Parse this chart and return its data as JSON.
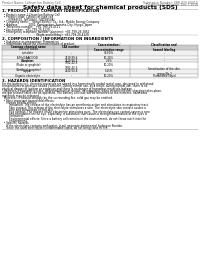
{
  "bg_color": "#ffffff",
  "top_left_text": "Product Name: Lithium Ion Battery Cell",
  "top_right_line1": "Substance Number: SBR-049-00010",
  "top_right_line2": "Established / Revision: Dec.7.2016",
  "main_title": "Safety data sheet for chemical products (SDS)",
  "section1_title": "1. PRODUCT AND COMPANY IDENTIFICATION",
  "section1_lines": [
    "  • Product name: Lithium Ion Battery Cell",
    "  • Product code: Cylindrical-type cell",
    "       (IVR66500, IVR18650, IVR18650A)",
    "  • Company name:    Sanyo Electric Co., Ltd., Mobile Energy Company",
    "  • Address:            2001, Kamiyashiro, Sumoto-City, Hyogo, Japan",
    "  • Telephone number:   +81-799-26-4111",
    "  • Fax number:  +81-799-26-4129",
    "  • Emergency telephone number (daytime): +81-799-26-3062",
    "                                       (Night and holiday): +81-799-26-4129"
  ],
  "section2_title": "2. COMPOSITION / INFORMATION ON INGREDIENTS",
  "section2_sub": "  • Substance or preparation: Preparation",
  "section2_sub2": "  • Information about the chemical nature of product:",
  "table_col_headers": [
    "Common chemical name",
    "CAS number",
    "Concentration /\nConcentration range",
    "Classification and\nhazard labeling"
  ],
  "table_rows": [
    [
      "Lithium cobalt\ntantalate\n(LiMnO4·PCl3O4)",
      "-",
      "30-60%",
      "-"
    ],
    [
      "Iron",
      "7439-89-6",
      "10-30%",
      "-"
    ],
    [
      "Aluminum",
      "7429-90-5",
      "2-5%",
      "-"
    ],
    [
      "Graphite\n(Flake or graphite)\n(Artificial graphite)",
      "7782-42-5\n7782-42-5",
      "10-20%",
      "-"
    ],
    [
      "Copper",
      "7440-50-8",
      "5-15%",
      "Sensitization of the skin\ngroup No.2"
    ],
    [
      "Organic electrolyte",
      "-",
      "10-20%",
      "Flammable liquid"
    ]
  ],
  "section3_title": "3. HAZARDS IDENTIFICATION",
  "section3_lines": [
    "For the battery cell, chemical materials are stored in a hermetically sealed metal case, designed to withstand",
    "temperatures in pressure-sealed container. During normal use, as a result, during normal use, there is no",
    "physical danger of ignition or explosion and there is no danger of hazardous materials leakage.",
    "  However, if exposed to a fire, added mechanical shocks, decomposed, when internal electric charging takes place,",
    "the gas release valve can be operated. The battery cell case will be breached at the extreme, hazardous",
    "materials may be released.",
    "  Moreover, if heated strongly by the surrounding fire, solid gas may be emitted."
  ],
  "section3_bullet1": "  • Most important hazard and effects:",
  "section3_human": "     Human health effects:",
  "section3_human_lines": [
    "        Inhalation: The release of the electrolyte has an anesthesia action and stimulates in respiratory tract.",
    "        Skin contact: The release of the electrolyte stimulates a skin. The electrolyte skin contact causes a",
    "        sore and stimulation on the skin.",
    "        Eye contact: The release of the electrolyte stimulates eyes. The electrolyte eye contact causes a sore",
    "        and stimulation on the eye. Especially, a substance that causes a strong inflammation of the eyes is",
    "        contained.",
    "        Environmental effects: Since a battery cell remains in the environment, do not throw out it into the",
    "        environment."
  ],
  "section3_specific": "  • Specific hazards:",
  "section3_specific_lines": [
    "     If the electrolyte contacts with water, it will generate detrimental hydrogen fluoride.",
    "     Since the used electrolyte is inflammable liquid, do not bring close to fire."
  ]
}
